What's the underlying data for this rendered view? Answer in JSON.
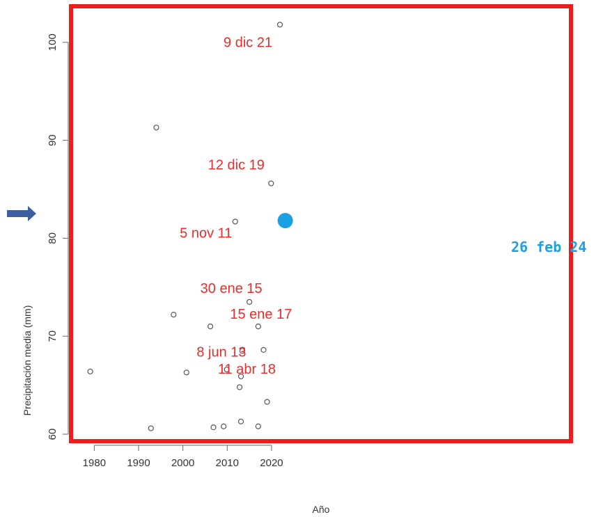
{
  "chart_data": {
    "type": "scatter",
    "title": "",
    "xlabel": "Año",
    "ylabel": "Precipitación media (mm)",
    "xlim": [
      1977.5,
      2024.5
    ],
    "ylim": [
      59.5,
      104
    ],
    "xticks": [
      1980,
      1990,
      2000,
      2010,
      2020
    ],
    "yticks": [
      60,
      70,
      80,
      90,
      100
    ],
    "grid": false,
    "points": [
      {
        "x": 1979.1,
        "y": 66.4
      },
      {
        "x": 1992.8,
        "y": 60.6
      },
      {
        "x": 1994.0,
        "y": 91.3
      },
      {
        "x": 1997.9,
        "y": 72.2
      },
      {
        "x": 2000.8,
        "y": 66.3
      },
      {
        "x": 2006.2,
        "y": 71.0
      },
      {
        "x": 2006.9,
        "y": 60.7
      },
      {
        "x": 2009.2,
        "y": 60.8
      },
      {
        "x": 2009.9,
        "y": 66.6
      },
      {
        "x": 2011.8,
        "y": 81.7
      },
      {
        "x": 2012.8,
        "y": 64.8
      },
      {
        "x": 2013.1,
        "y": 65.9
      },
      {
        "x": 2013.1,
        "y": 61.3
      },
      {
        "x": 2013.4,
        "y": 68.5
      },
      {
        "x": 2015.0,
        "y": 73.5
      },
      {
        "x": 2017.0,
        "y": 71.0
      },
      {
        "x": 2017.0,
        "y": 60.8
      },
      {
        "x": 2018.2,
        "y": 68.6
      },
      {
        "x": 2019.0,
        "y": 63.3
      },
      {
        "x": 2019.9,
        "y": 85.6
      },
      {
        "x": 2021.9,
        "y": 101.8
      }
    ],
    "highlight": {
      "x": 2023.1,
      "y": 81.8,
      "label": "26 feb 24",
      "color": "#1ba1e2"
    },
    "annotations": [
      {
        "text": "9 dic 21",
        "x": 2021.9,
        "y": 101.8
      },
      {
        "text": "12 dic 19",
        "x": 2019.9,
        "y": 85.6
      },
      {
        "text": "5 nov 11",
        "x": 2011.8,
        "y": 81.7
      },
      {
        "text": "30 ene 15",
        "x": 2015.0,
        "y": 73.5
      },
      {
        "text": "15 ene 17",
        "x": 2017.0,
        "y": 71.0
      },
      {
        "text": "8 jun 13",
        "x": 2013.4,
        "y": 68.5
      },
      {
        "text": "11 abr 18",
        "x": 2018.2,
        "y": 68.6
      }
    ],
    "colors": {
      "frame": "#ee1c1c",
      "annotation": "#ee2b2b",
      "highlight": "#1ba1e2",
      "arrow": "#3b5fa0",
      "points": "#555555"
    }
  }
}
